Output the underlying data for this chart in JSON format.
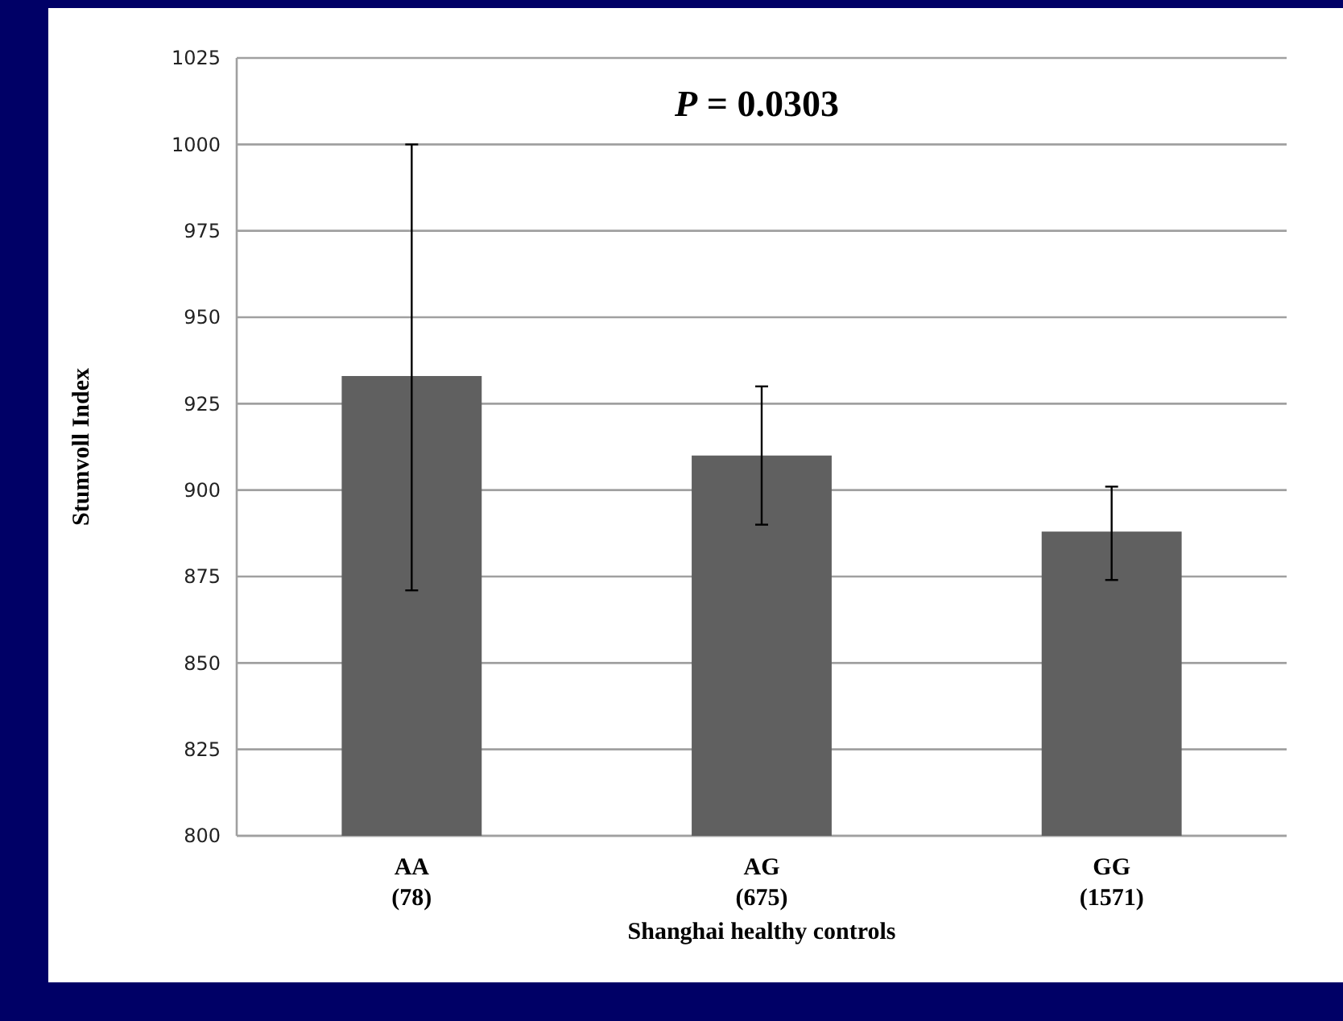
{
  "chart_data": {
    "type": "bar",
    "annotations": [
      "P = 0.0303"
    ],
    "xlabel": "Shanghai healthy controls",
    "ylabel": "Stumvoll Index",
    "categories": [
      "AA\n(78)",
      "AG\n(675)",
      "GG\n(1571)"
    ],
    "values": [
      933,
      910,
      888
    ],
    "color": "#606060",
    "errors": [
      [
        871,
        1000
      ],
      [
        890,
        930
      ],
      [
        874,
        901
      ]
    ],
    "ylim": [
      800,
      1025
    ],
    "yticks": [
      800,
      825,
      850,
      875,
      900,
      925,
      950,
      975,
      1000,
      1025
    ],
    "grid": "y"
  }
}
